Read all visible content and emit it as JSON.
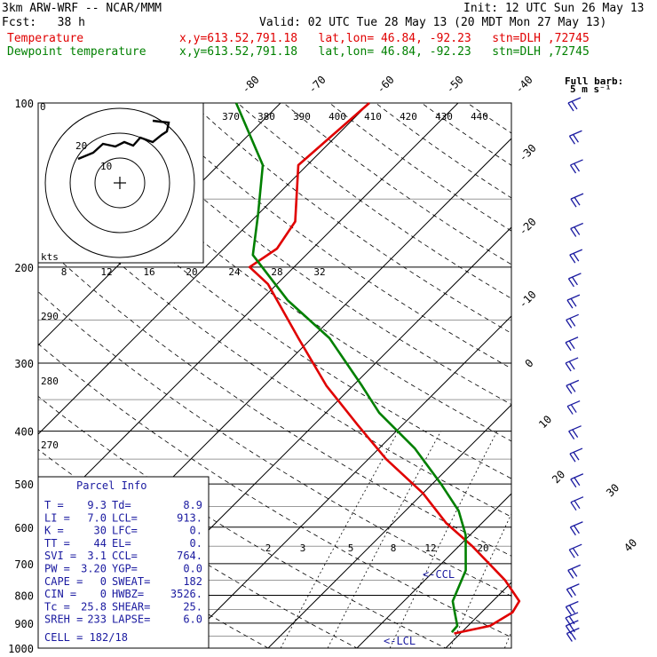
{
  "header": {
    "model": "3km ARW-WRF -- NCAR/MMM",
    "init": "Init: 12 UTC Sun 26 May 13",
    "fcst": "Fcst:   38 h",
    "valid": "Valid: 02 UTC Tue 28 May 13 (20 MDT Mon 27 May 13)",
    "temp_label": "Temperature",
    "dew_label": "Dewpoint temperature",
    "loc": "x,y=613.52,791.18   lat,lon= 46.84, -92.23   stn=DLH ,72745"
  },
  "wind_key": {
    "line1": "Full barb:",
    "line2": "5 m s⁻¹"
  },
  "hodograph": {
    "label": "kts",
    "ring_labels": [
      "10",
      "20"
    ],
    "corner": "0"
  },
  "mixing_labels": [
    "2",
    "3",
    "5",
    "8",
    "12",
    "20"
  ],
  "ccl_label": "CCL",
  "lcl_label": "LCL",
  "parcel": {
    "title": "Parcel Info",
    "rows": [
      {
        "k1": "T",
        "v1": "9.3",
        "k2": "Td",
        "v2": "8.9"
      },
      {
        "k1": "LI",
        "v1": "7.0",
        "k2": "LCL",
        "v2": "913."
      },
      {
        "k1": "K",
        "v1": "30",
        "k2": "LFC",
        "v2": "0."
      },
      {
        "k1": "TT",
        "v1": "44",
        "k2": "EL",
        "v2": "0."
      },
      {
        "k1": "SVI",
        "v1": "3.1",
        "k2": "CCL",
        "v2": "764."
      },
      {
        "k1": "PW",
        "v1": "3.20",
        "k2": "YGP",
        "v2": "0.0"
      },
      {
        "k1": "CAPE",
        "v1": "0",
        "k2": "SWEAT",
        "v2": "182"
      },
      {
        "k1": "CIN",
        "v1": "0",
        "k2": "HWBZ",
        "v2": "3526."
      },
      {
        "k1": "Tc",
        "v1": "25.8",
        "k2": "SHEAR",
        "v2": "25."
      },
      {
        "k1": "SREH",
        "v1": "233",
        "k2": "LAPSE",
        "v2": "6.0"
      }
    ],
    "cell": "CELL = 182/18"
  },
  "chart_data": {
    "type": "line",
    "title": "",
    "pressure_levels": [
      "100",
      "200",
      "300",
      "400",
      "500",
      "600",
      "700",
      "800",
      "900",
      "1000"
    ],
    "isotherm_labels": [
      "-80",
      "-70",
      "-60",
      "-50",
      "-40",
      "-30",
      "-20",
      "-10",
      "0",
      "10",
      "20",
      "30",
      "40"
    ],
    "theta_labels": [
      "370",
      "380",
      "390",
      "400",
      "410",
      "420",
      "430",
      "440"
    ],
    "theta_side_labels": [
      "290",
      "280",
      "270"
    ],
    "mr_labels": [
      "8",
      "12",
      "16",
      "20",
      "24",
      "28",
      "32"
    ],
    "series": [
      {
        "name": "Temperature",
        "color": "#e00000",
        "x": [
          9.3,
          12.5,
          13.5,
          13.0,
          9.0,
          1.5,
          -4.0,
          -10.0,
          -18.0,
          -25.0,
          -33.0,
          -41.5,
          -51.0,
          -55.0,
          -54.0,
          -55.0,
          -61.0,
          -60.0
        ],
        "p": [
          940,
          910,
          860,
          820,
          750,
          650,
          590,
          520,
          450,
          390,
          330,
          270,
          215,
          200,
          185,
          165,
          130,
          100
        ]
      },
      {
        "name": "Dewpoint temperature",
        "color": "#008000",
        "x": [
          8.9,
          8.8,
          7.0,
          5.5,
          3.5,
          -0.5,
          -4.0,
          -9.0,
          -16.0,
          -24.0,
          -29.0,
          -38.0,
          -47.0,
          -56.0,
          -60.0,
          -65.0,
          -75.0
        ],
        "p": [
          935,
          910,
          860,
          820,
          720,
          620,
          560,
          500,
          430,
          370,
          330,
          270,
          230,
          190,
          160,
          130,
          100
        ]
      }
    ]
  }
}
